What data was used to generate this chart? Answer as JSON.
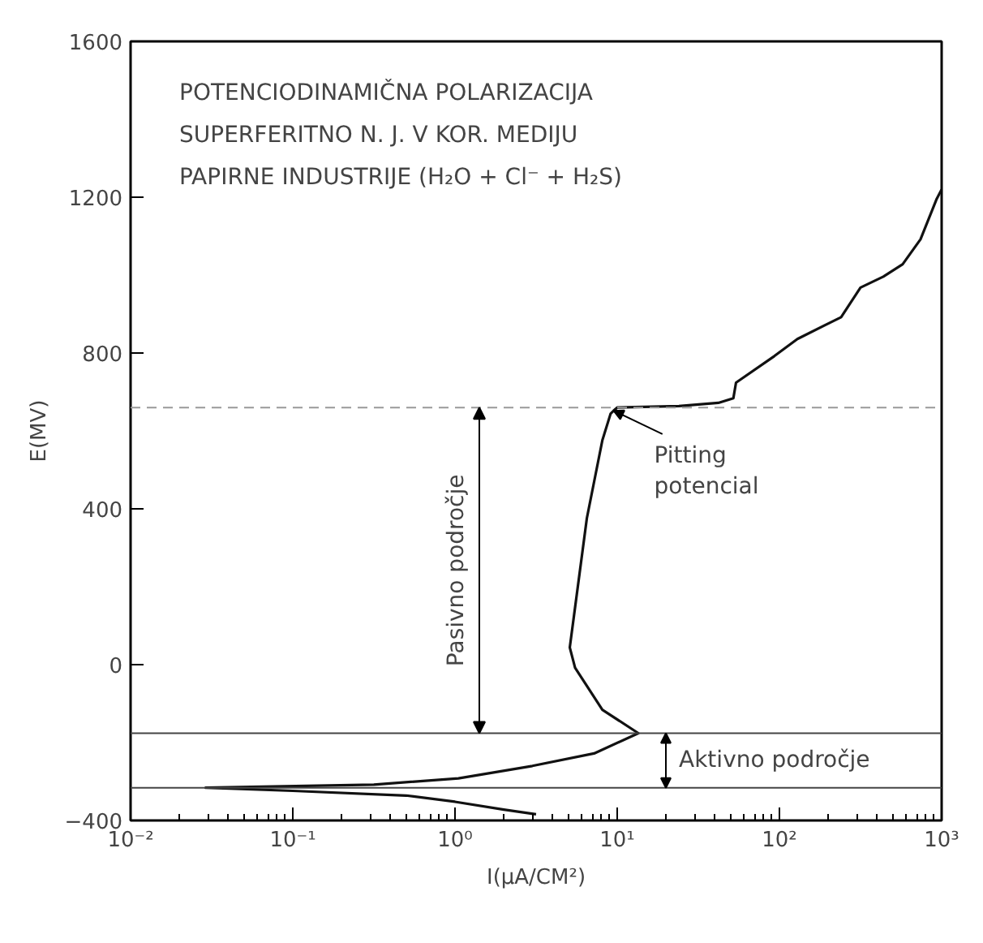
{
  "chart_data": {
    "type": "line",
    "title": "POTENCIODINAMIČNA POLARIZACIJA\nSUPERFERITNO N. J. V KOR. MEDIJU\nPAPIRNE INDUSTRIJE (H₂O + Cl⁻ + H₂S)",
    "xlabel": "I(μA/CM²)",
    "ylabel": "E(MV)",
    "log": "x",
    "series": [
      {
        "color": "#111111",
        "x": [
          3.16,
          2.0,
          1.0,
          0.5,
          0.1,
          0.029,
          0.316,
          1.05,
          3.0,
          7.2,
          13.5,
          8.1,
          5.5,
          5.1,
          6.5,
          8.1,
          9.1,
          9.5,
          10,
          24,
          42,
          52,
          54,
          93,
          129,
          240,
          316,
          437,
          575,
          741,
          933,
          1000
        ],
        "values": [
          -384,
          -372,
          -352,
          -336,
          -324,
          -316,
          -308,
          -292,
          -260,
          -228,
          -176,
          -116,
          -8,
          44,
          376,
          576,
          644,
          652,
          660,
          664,
          672,
          684,
          724,
          792,
          836,
          892,
          968,
          996,
          1028,
          1092,
          1196,
          1220
        ]
      }
    ],
    "xlim": [
      0.01,
      1000
    ],
    "ylim": [
      -400,
      1600
    ],
    "xticks": [
      {
        "value": 0.01,
        "label": "10⁻²"
      },
      {
        "value": 0.1,
        "label": "10⁻¹"
      },
      {
        "value": 1,
        "label": "10⁰"
      },
      {
        "value": 10,
        "label": "10¹"
      },
      {
        "value": 100,
        "label": "10²"
      },
      {
        "value": 1000,
        "label": "10³"
      }
    ],
    "yticks": [
      -400,
      0,
      400,
      800,
      1200,
      1600
    ],
    "grid": false,
    "marker": "none",
    "line_style": "solid",
    "ref_lines": [
      {
        "axis": "y",
        "value": 660,
        "line_style": "dashed",
        "color": "#999999"
      },
      {
        "axis": "y",
        "value": -176,
        "color": "#444444"
      },
      {
        "axis": "y",
        "value": -316,
        "color": "#444444"
      }
    ],
    "annotations": [
      {
        "text": "Pitting\npotencial",
        "x": 9.5,
        "y": 652
      },
      "Pasivno področje",
      "Aktivno področje"
    ]
  }
}
